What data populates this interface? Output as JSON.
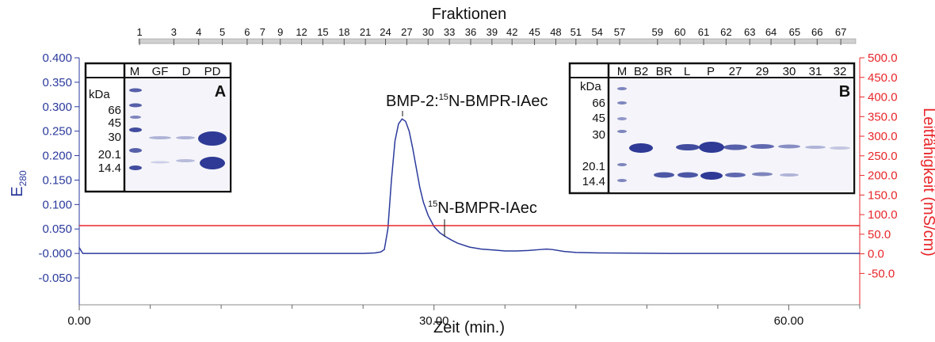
{
  "chart_data": {
    "type": "line",
    "top_axis_title": "Fraktionen",
    "xlabel": "Zeit (min.)",
    "ylabel": {
      "text": "E",
      "sub": "280"
    },
    "y2label": "Leitfähigkeit (mS/cm)",
    "xlim": [
      0,
      66
    ],
    "xticks": [
      {
        "value": 0,
        "label": "0.00"
      },
      {
        "value": 30,
        "label": "30.00"
      },
      {
        "value": 60,
        "label": "60.00"
      }
    ],
    "xminorticks": [
      6,
      12,
      18,
      24,
      36,
      42,
      48,
      54,
      66
    ],
    "ylim": [
      -0.105,
      0.4
    ],
    "yticks": [
      {
        "value": -0.05,
        "label": "-0.050"
      },
      {
        "value": 0,
        "label": "-0.000"
      },
      {
        "value": 0.05,
        "label": "0.050"
      },
      {
        "value": 0.1,
        "label": "0.100"
      },
      {
        "value": 0.15,
        "label": "0.150"
      },
      {
        "value": 0.2,
        "label": "0.200"
      },
      {
        "value": 0.25,
        "label": "0.250"
      },
      {
        "value": 0.3,
        "label": "0.300"
      },
      {
        "value": 0.35,
        "label": "0.350"
      },
      {
        "value": 0.4,
        "label": "0.400"
      }
    ],
    "y2lim": [
      -130,
      500
    ],
    "y2ticks": [
      {
        "value": -50,
        "label": "-50.0"
      },
      {
        "value": 0,
        "label": "0.0"
      },
      {
        "value": 50,
        "label": "50.0"
      },
      {
        "value": 100,
        "label": "100.0"
      },
      {
        "value": 150,
        "label": "150.0"
      },
      {
        "value": 200,
        "label": "200.0"
      },
      {
        "value": 250,
        "label": "250.0"
      },
      {
        "value": 300,
        "label": "300.0"
      },
      {
        "value": 350,
        "label": "350.0"
      },
      {
        "value": 400,
        "label": "400.0"
      },
      {
        "value": 450,
        "label": "450.0"
      },
      {
        "value": 500,
        "label": "500.0"
      }
    ],
    "x2ticks": [
      {
        "value": 5.1,
        "label": "1"
      },
      {
        "value": 8.0,
        "label": "3"
      },
      {
        "value": 10.1,
        "label": "4"
      },
      {
        "value": 12.1,
        "label": "5"
      },
      {
        "value": 14.2,
        "label": "6"
      },
      {
        "value": 15.5,
        "label": "7"
      },
      {
        "value": 17.0,
        "label": "9"
      },
      {
        "value": 18.8,
        "label": "12"
      },
      {
        "value": 20.6,
        "label": "15"
      },
      {
        "value": 22.4,
        "label": "18"
      },
      {
        "value": 24.2,
        "label": "21"
      },
      {
        "value": 25.9,
        "label": "24"
      },
      {
        "value": 27.7,
        "label": "27"
      },
      {
        "value": 29.5,
        "label": "30"
      },
      {
        "value": 31.3,
        "label": "33"
      },
      {
        "value": 33.1,
        "label": "36"
      },
      {
        "value": 34.9,
        "label": "39"
      },
      {
        "value": 36.6,
        "label": "42"
      },
      {
        "value": 38.5,
        "label": "45"
      },
      {
        "value": 40.3,
        "label": "48"
      },
      {
        "value": 42.0,
        "label": "51"
      },
      {
        "value": 43.8,
        "label": "54"
      },
      {
        "value": 45.7,
        "label": "57"
      },
      {
        "value": 48.9,
        "label": "59"
      },
      {
        "value": 50.8,
        "label": "60"
      },
      {
        "value": 52.8,
        "label": "61"
      },
      {
        "value": 54.7,
        "label": "62"
      },
      {
        "value": 56.7,
        "label": "63"
      },
      {
        "value": 58.5,
        "label": "64"
      },
      {
        "value": 60.5,
        "label": "65"
      },
      {
        "value": 62.4,
        "label": "66"
      },
      {
        "value": 64.4,
        "label": "67"
      }
    ],
    "series": [
      {
        "color": "#2b3a9c",
        "x": [
          0,
          0.3,
          1,
          5,
          10,
          15,
          20,
          24,
          25,
          25.5,
          25.8,
          26.1,
          26.4,
          26.7,
          27.0,
          27.3,
          27.6,
          27.9,
          28.2,
          28.5,
          28.8,
          29.1,
          29.5,
          30,
          30.5,
          31,
          31.5,
          32,
          33,
          34,
          35,
          36,
          37,
          38,
          39,
          39.5,
          40,
          41,
          42,
          44,
          50,
          55,
          60,
          66
        ],
        "values": [
          0.012,
          0,
          0,
          0,
          0,
          0,
          0,
          0,
          0.001,
          0.003,
          0.008,
          0.05,
          0.15,
          0.23,
          0.265,
          0.275,
          0.27,
          0.25,
          0.215,
          0.175,
          0.135,
          0.105,
          0.078,
          0.055,
          0.042,
          0.034,
          0.027,
          0.021,
          0.013,
          0.009,
          0.007,
          0.005,
          0.005,
          0.006,
          0.008,
          0.009,
          0.008,
          0.004,
          0.002,
          0.001,
          0,
          0,
          0,
          0
        ]
      },
      {
        "color": "#e8262a",
        "axis": "y2",
        "x": [
          0,
          66
        ],
        "values": [
          72,
          72
        ]
      }
    ],
    "annotations": [
      {
        "prefix": "BMP-2:",
        "sup": "15",
        "text": "N-BMPR-IAec"
      },
      {
        "sup": "15",
        "text": "N-BMPR-IAec"
      }
    ],
    "insets": [
      {
        "label": "A",
        "unit": "kDa",
        "lanes": [
          "M",
          "GF",
          "D",
          "PD"
        ],
        "markers": [
          "66",
          "45",
          "30",
          "20.1",
          "14.4"
        ]
      },
      {
        "label": "B",
        "unit": "kDa",
        "lanes": [
          "M",
          "B2",
          "BR",
          "L",
          "P",
          "27",
          "29",
          "30",
          "31",
          "32"
        ],
        "markers": [
          "66",
          "45",
          "30",
          "20.1",
          "14.4"
        ]
      }
    ]
  }
}
